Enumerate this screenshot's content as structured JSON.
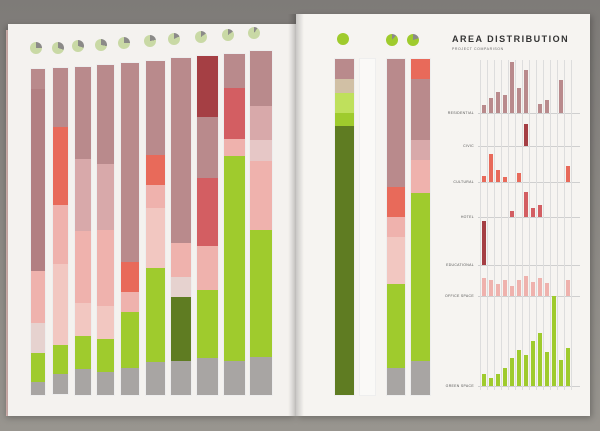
{
  "right_page": {
    "title": "AREA DISTRIBUTION",
    "subtitle": "PROJECT COMPARISON",
    "categories": [
      "RESIDENTIAL",
      "CIVIC",
      "CULTURAL",
      "HOTEL",
      "EDUCATIONAL",
      "OFFICE SPACE",
      "GREEN SPACE"
    ]
  },
  "colors": {
    "residential": "#b98a8c",
    "residential_light": "#d8a9aa",
    "salmon": "#e86a5a",
    "darkred": "#a53f44",
    "pink": "#efb2ad",
    "green": "#9fcb2d",
    "darkgreen": "#5f7c22",
    "gray": "#a8a5a3"
  }
}
